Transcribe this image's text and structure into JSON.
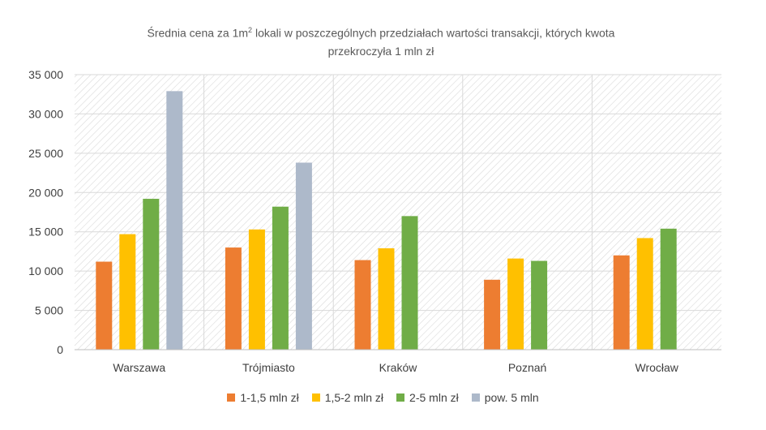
{
  "chart_data": {
    "type": "bar",
    "title_main": "Średnia cena za 1m",
    "title_sup": "2",
    "title_rest": " lokali w poszczególnych przedziałach wartości transakcji, których kwota",
    "title_line2": "przekroczyła 1 mln zł",
    "categories": [
      "Warszawa",
      "Trójmiasto",
      "Kraków",
      "Poznań",
      "Wrocław"
    ],
    "series": [
      {
        "name": "1-1,5 mln zł",
        "color": "#ED7D31",
        "values": [
          11200,
          13000,
          11400,
          8900,
          12000
        ]
      },
      {
        "name": "1,5-2 mln zł",
        "color": "#FFC000",
        "values": [
          14700,
          15300,
          12900,
          11600,
          14200
        ]
      },
      {
        "name": "2-5 mln zł",
        "color": "#70AD47",
        "values": [
          19200,
          18200,
          17000,
          11300,
          15400
        ]
      },
      {
        "name": "pow. 5 mln",
        "color": "#ADB9CA",
        "values": [
          32900,
          23800,
          null,
          null,
          null
        ]
      }
    ],
    "ylim": [
      0,
      35000
    ],
    "yticks": [
      0,
      5000,
      10000,
      15000,
      20000,
      25000,
      30000,
      35000
    ],
    "ytick_labels": [
      "0",
      "5 000",
      "10 000",
      "15 000",
      "20 000",
      "25 000",
      "30 000",
      "35 000"
    ],
    "grid": true,
    "legend_position": "bottom"
  }
}
